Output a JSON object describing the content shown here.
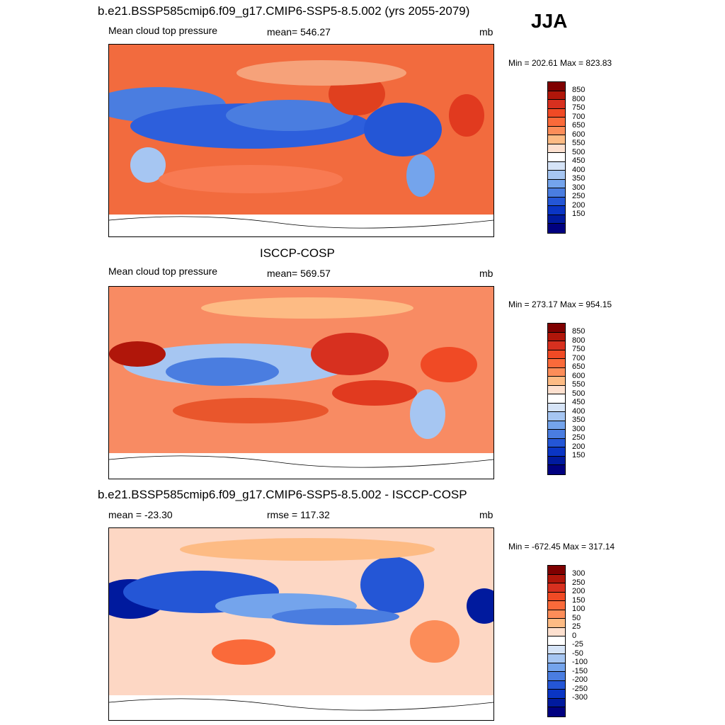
{
  "season": "JJA",
  "panels": [
    {
      "title": "b.e21.BSSP585cmip6.f09_g17.CMIP6-SSP5-8.5.002 (yrs 2055-2079)",
      "left_label": "Mean cloud top pressure",
      "center_label": "mean= 546.27",
      "units": "mb",
      "minmax": "Min = 202.61 Max = 823.83",
      "colorbar_ticks": [
        "850",
        "800",
        "750",
        "700",
        "650",
        "600",
        "550",
        "500",
        "450",
        "400",
        "350",
        "300",
        "250",
        "200",
        "150"
      ]
    },
    {
      "title": "ISCCP-COSP",
      "left_label": "Mean cloud top pressure",
      "center_label": "mean= 569.57",
      "units": "mb",
      "minmax": "Min = 273.17 Max = 954.15",
      "colorbar_ticks": [
        "850",
        "800",
        "750",
        "700",
        "650",
        "600",
        "550",
        "500",
        "450",
        "400",
        "350",
        "300",
        "250",
        "200",
        "150"
      ]
    },
    {
      "title": "b.e21.BSSP585cmip6.f09_g17.CMIP6-SSP5-8.5.002 - ISCCP-COSP",
      "left_label": "mean = -23.30",
      "center_label": "rmse = 117.32",
      "units": "mb",
      "minmax": "Min = -672.45 Max = 317.14",
      "colorbar_ticks": [
        "300",
        "250",
        "200",
        "150",
        "100",
        "50",
        "25",
        "0",
        "-25",
        "-50",
        "-100",
        "-150",
        "-200",
        "-250",
        "-300"
      ]
    }
  ],
  "colorbar_colors": [
    "#7f0000",
    "#b0160a",
    "#d7301f",
    "#f04a25",
    "#fa6a3a",
    "#fc8d59",
    "#fdbb84",
    "#fde0cf",
    "#ffffff",
    "#d6e4f7",
    "#a6c6f2",
    "#74a4ec",
    "#4a7de0",
    "#2456d6",
    "#0a35c4",
    "#001a9e",
    "#000080"
  ]
}
